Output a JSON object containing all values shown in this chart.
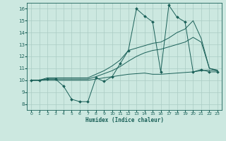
{
  "title": "",
  "xlabel": "Humidex (Indice chaleur)",
  "background_color": "#cce8e0",
  "grid_color": "#aaccc4",
  "line_color": "#1a6058",
  "xlim": [
    -0.5,
    23.5
  ],
  "ylim": [
    7.5,
    16.5
  ],
  "xticks": [
    0,
    1,
    2,
    3,
    4,
    5,
    6,
    7,
    8,
    9,
    10,
    11,
    12,
    13,
    14,
    15,
    16,
    17,
    18,
    19,
    20,
    21,
    22,
    23
  ],
  "yticks": [
    8,
    9,
    10,
    11,
    12,
    13,
    14,
    15,
    16
  ],
  "line1_x": [
    0,
    1,
    2,
    3,
    4,
    5,
    6,
    7,
    8,
    9,
    10,
    11,
    12,
    13,
    14,
    15,
    16,
    17,
    18,
    19,
    20,
    21,
    22,
    23
  ],
  "line1_y": [
    10.0,
    10.0,
    10.1,
    10.1,
    9.5,
    8.4,
    8.2,
    8.2,
    10.2,
    9.9,
    10.3,
    11.4,
    12.5,
    16.0,
    15.4,
    14.9,
    10.7,
    16.3,
    15.3,
    14.9,
    10.7,
    10.9,
    10.7,
    10.7
  ],
  "line2_x": [
    0,
    1,
    2,
    3,
    4,
    5,
    6,
    7,
    8,
    9,
    10,
    11,
    12,
    13,
    14,
    15,
    16,
    17,
    18,
    19,
    20,
    21,
    22,
    23
  ],
  "line2_y": [
    10.0,
    10.0,
    10.0,
    10.0,
    10.0,
    10.0,
    10.0,
    10.0,
    10.1,
    10.2,
    10.3,
    10.4,
    10.5,
    10.55,
    10.6,
    10.5,
    10.5,
    10.55,
    10.6,
    10.65,
    10.7,
    10.8,
    10.85,
    10.8
  ],
  "line3_x": [
    0,
    1,
    2,
    3,
    4,
    5,
    6,
    7,
    8,
    9,
    10,
    11,
    12,
    13,
    14,
    15,
    16,
    17,
    18,
    19,
    20,
    21,
    22,
    23
  ],
  "line3_y": [
    10.0,
    10.0,
    10.1,
    10.1,
    10.1,
    10.1,
    10.1,
    10.1,
    10.3,
    10.55,
    10.8,
    11.15,
    11.6,
    12.0,
    12.3,
    12.5,
    12.6,
    12.8,
    13.0,
    13.2,
    13.6,
    13.2,
    11.0,
    10.8
  ],
  "line4_x": [
    0,
    1,
    2,
    3,
    4,
    5,
    6,
    7,
    8,
    9,
    10,
    11,
    12,
    13,
    14,
    15,
    16,
    17,
    18,
    19,
    20,
    21,
    22,
    23
  ],
  "line4_y": [
    10.0,
    10.0,
    10.2,
    10.2,
    10.2,
    10.2,
    10.2,
    10.2,
    10.5,
    10.8,
    11.2,
    11.7,
    12.5,
    12.7,
    12.9,
    13.1,
    13.2,
    13.55,
    14.0,
    14.3,
    15.0,
    13.5,
    11.0,
    10.85
  ]
}
